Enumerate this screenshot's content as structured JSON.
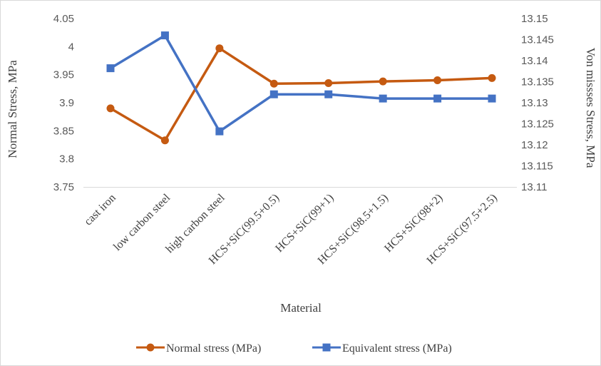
{
  "chart_data": {
    "type": "line",
    "title": "",
    "xlabel": "Material",
    "ylabel_left": "Normal Stress, MPa",
    "ylabel_right": "Von missses Stress, MPa",
    "categories": [
      "cast iron",
      "low carbon steel",
      "high carbon steel",
      "HCS+SiC(99.5+0.5)",
      "HCS+SiC(99+1)",
      "HCS+SiC(98.5+1.5)",
      "HCS+SiC(98+2)",
      "HCS+SiC(97.5+2.5)"
    ],
    "y_left": {
      "min": 3.75,
      "max": 4.05,
      "ticks": [
        "4.05",
        "4",
        "3.95",
        "3.9",
        "3.85",
        "3.8",
        "3.75"
      ]
    },
    "y_right": {
      "min": 13.11,
      "max": 13.15,
      "ticks": [
        "13.15",
        "13.145",
        "13.14",
        "13.135",
        "13.13",
        "13.125",
        "13.12",
        "13.115",
        "13.11"
      ]
    },
    "series": [
      {
        "name": "Normal stress (MPa)",
        "axis": "left",
        "color": "#C55A11",
        "marker": "circle",
        "values": [
          3.89,
          3.833,
          3.997,
          3.934,
          3.935,
          3.938,
          3.94,
          3.944
        ]
      },
      {
        "name": "Equivalent stress (MPa)",
        "axis": "right",
        "color": "#4472C4",
        "marker": "square",
        "values": [
          13.1382,
          13.146,
          13.1232,
          13.132,
          13.132,
          13.131,
          13.131,
          13.131
        ]
      }
    ],
    "grid": false,
    "legend_position": "bottom"
  }
}
